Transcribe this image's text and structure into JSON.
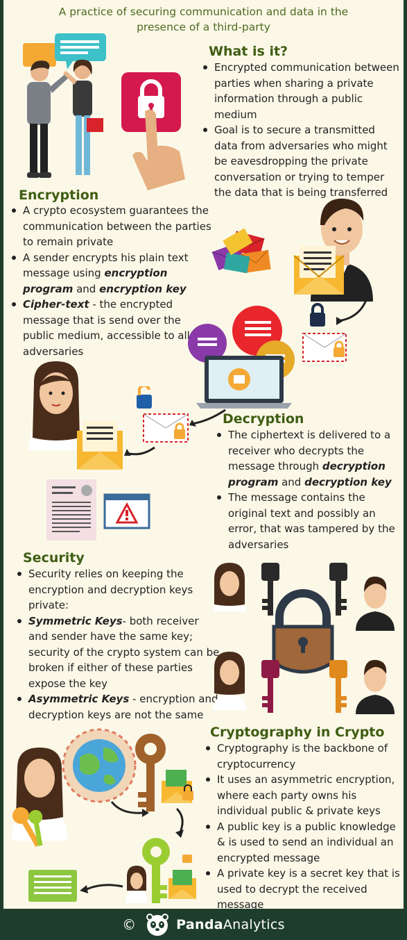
{
  "subtitle": {
    "line1": "A practice of securing communication and data in the",
    "line2": "presence of a third-party"
  },
  "what_is_it": {
    "heading": "What is it?",
    "bullets": [
      "Encrypted communication between parties when sharing a private information through a public medium",
      "Goal is to secure a transmitted data from adversaries who might be eavesdropping the private conversation or trying to temper the data that is being transferred"
    ]
  },
  "encryption": {
    "heading": "Encryption",
    "b1": "A crypto ecosystem guarantees the communication between the parties to remain private",
    "b2_pre": "A sender encrypts his plain text message using ",
    "b2_em1": "encryption program",
    "b2_mid": " and ",
    "b2_em2": "encryption key",
    "b3_em": "Cipher-text",
    "b3_rest": " - the encrypted message that is send over the public medium, accessible to all adversaries"
  },
  "decryption": {
    "heading": "Decryption",
    "b1_pre": "The ciphertext is delivered to a receiver who decrypts the message through ",
    "b1_em1": "decryption program",
    "b1_mid": " and ",
    "b1_em2": "decryption key",
    "b2": "The message contains the original text and possibly an error, that was tampered by the adversaries"
  },
  "security": {
    "heading": "Security",
    "b1": "Security relies on keeping the encryption and decryption keys private:",
    "b2_em": "Symmetric Keys",
    "b2_rest": "- both receiver and sender have the same key; security of the crypto system can be broken if either of these parties expose the key",
    "b3_em": "Asymmetric Keys",
    "b3_rest": " - encryption and decryption keys are not the same"
  },
  "crypto": {
    "heading": "Cryptography in Crypto",
    "bullets": [
      "Cryptography is the backbone of cryptocurrency",
      "It uses an asymmetric encryption, where each party owns his individual public & private keys",
      "A public key is a public knowledge & is used to send an individual an encrypted message",
      "A private key is a secret key that is used to decrypt the received message"
    ]
  },
  "footer": {
    "copyright": "©",
    "brand_bold": "Panda",
    "brand_rest": "Analytics"
  },
  "colors": {
    "background": "#fbf8e8",
    "heading": "#3f5d12",
    "footer": "#1f3d2c"
  }
}
